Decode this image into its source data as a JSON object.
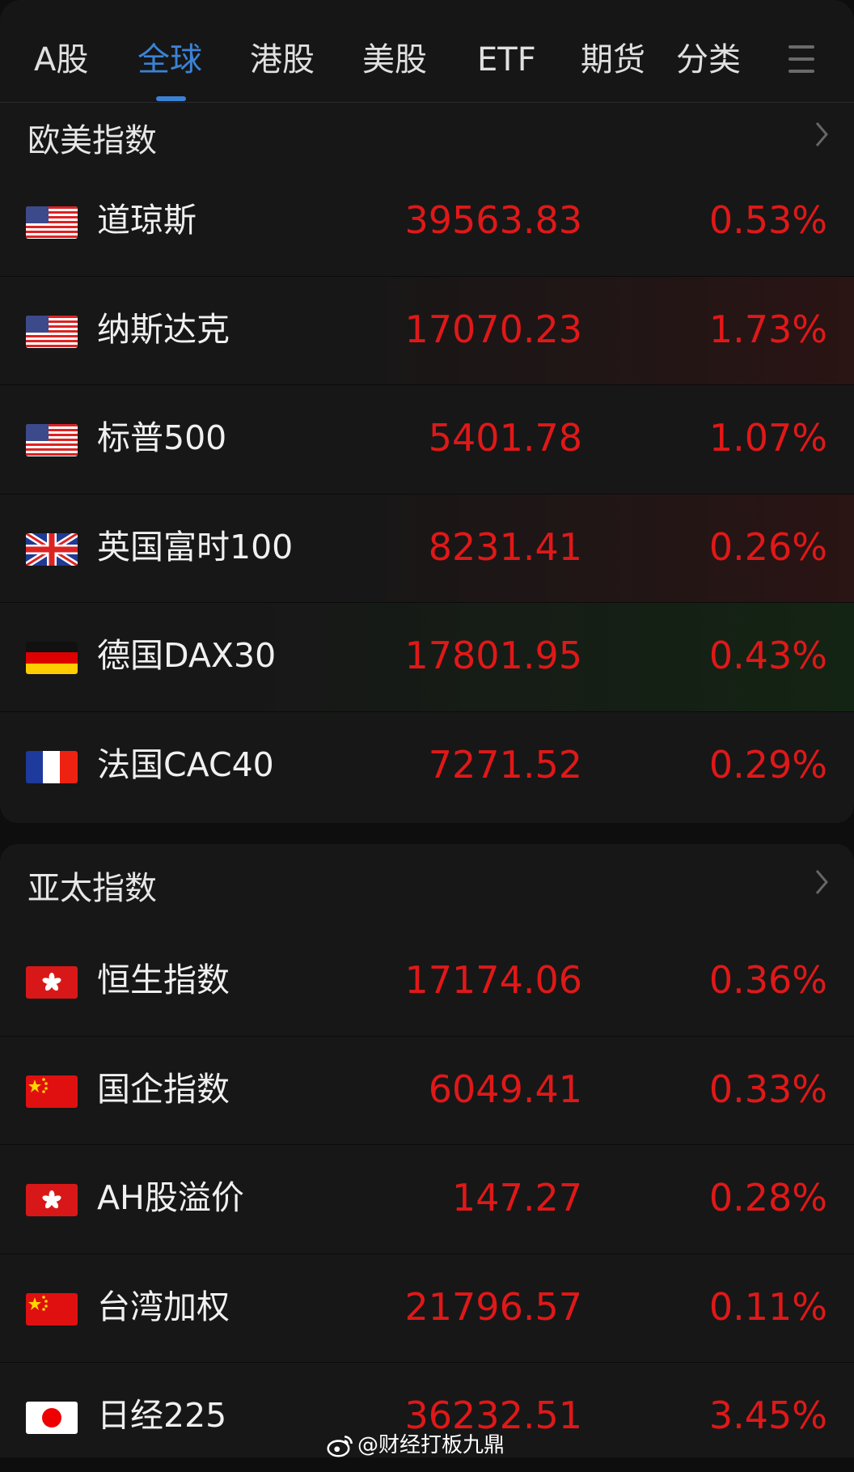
{
  "tabs": [
    {
      "label": "A股"
    },
    {
      "label": "全球",
      "active": true
    },
    {
      "label": "港股"
    },
    {
      "label": "美股"
    },
    {
      "label": "ETF"
    },
    {
      "label": "期货"
    },
    {
      "label": "分类"
    }
  ],
  "menu_icon": "hamburger-icon",
  "colors": {
    "accent": "#3b82d6",
    "up": "#e01818",
    "background": "#171717"
  },
  "sections": [
    {
      "title": "欧美指数",
      "rows": [
        {
          "flag": "us",
          "name": "道琼斯",
          "price": "39563.83",
          "pct": "0.53%"
        },
        {
          "flag": "us",
          "name": "纳斯达克",
          "price": "17070.23",
          "pct": "1.73%",
          "highlight": "red"
        },
        {
          "flag": "us",
          "name": "标普500",
          "price": "5401.78",
          "pct": "1.07%"
        },
        {
          "flag": "uk",
          "name": "英国富时100",
          "price": "8231.41",
          "pct": "0.26%",
          "highlight": "red"
        },
        {
          "flag": "de",
          "name": "德国DAX30",
          "price": "17801.95",
          "pct": "0.43%",
          "highlight": "green"
        },
        {
          "flag": "fr",
          "name": "法国CAC40",
          "price": "7271.52",
          "pct": "0.29%"
        }
      ]
    },
    {
      "title": "亚太指数",
      "rows": [
        {
          "flag": "hk",
          "name": "恒生指数",
          "price": "17174.06",
          "pct": "0.36%"
        },
        {
          "flag": "cn",
          "name": "国企指数",
          "price": "6049.41",
          "pct": "0.33%"
        },
        {
          "flag": "hk",
          "name": "AH股溢价",
          "price": "147.27",
          "pct": "0.28%"
        },
        {
          "flag": "cn",
          "name": "台湾加权",
          "price": "21796.57",
          "pct": "0.11%"
        },
        {
          "flag": "jp",
          "name": "日经225",
          "price": "36232.51",
          "pct": "3.45%"
        }
      ]
    }
  ],
  "watermark": "@财经打板九鼎"
}
